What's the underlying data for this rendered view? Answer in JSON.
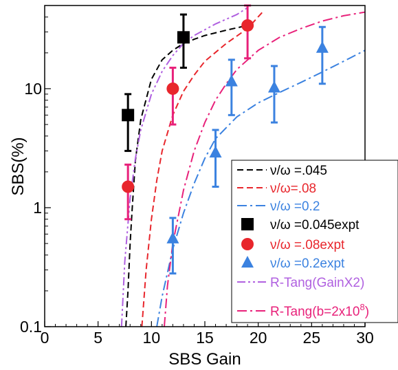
{
  "chart_data": {
    "type": "scatter",
    "xlabel": "SBS Gain",
    "ylabel": "SBS(%)",
    "xlim": [
      0,
      30
    ],
    "ylim": [
      0.1,
      50
    ],
    "y_scale": "log",
    "grid": false,
    "legend_position": "bottom-right",
    "xticks": [
      0,
      5,
      10,
      15,
      20,
      25,
      30
    ],
    "xtick_labels": [
      "0",
      "5",
      "10",
      "15",
      "20",
      "25",
      "30"
    ],
    "yticks": [
      0.1,
      1,
      10
    ],
    "ytick_labels": [
      "0.1",
      "1",
      "10"
    ],
    "series": [
      {
        "name": "ν/ω =.045",
        "kind": "line",
        "dash": "dash",
        "color": "#000000",
        "x": [
          7.6,
          7.8,
          8.0,
          8.2,
          8.5,
          9.0,
          10.0,
          11.0,
          12.0,
          13.0,
          14.0,
          15.0,
          17.0,
          19.0
        ],
        "y": [
          0.1,
          0.2,
          0.5,
          1.0,
          2.5,
          5.5,
          12.0,
          17.5,
          21.0,
          24.0,
          26.0,
          28.0,
          31.0,
          34.0
        ]
      },
      {
        "name": "ν/ω=.08",
        "kind": "line",
        "dash": "dash",
        "color": "#e8262c",
        "x": [
          9.1,
          9.5,
          10.0,
          10.5,
          11.0,
          12.0,
          13.0,
          14.0,
          15.0,
          17.0,
          19.0,
          20.5
        ],
        "y": [
          0.1,
          0.3,
          0.8,
          1.7,
          3.0,
          6.0,
          9.5,
          13.0,
          17.0,
          24.0,
          32.0,
          45.0
        ]
      },
      {
        "name": "ν/ω =0.2",
        "kind": "line",
        "dash": "dashdot",
        "color": "#3b82e0",
        "x": [
          10.5,
          11.0,
          12.0,
          13.0,
          14.0,
          15.0,
          16.0,
          18.0,
          20.0,
          22.0,
          24.0,
          26.0,
          28.0,
          30.0
        ],
        "y": [
          0.1,
          0.18,
          0.45,
          0.9,
          1.6,
          2.6,
          3.8,
          5.8,
          7.6,
          9.3,
          11.3,
          13.8,
          17.0,
          21.0
        ]
      },
      {
        "name": "ν/ω =0.045expt",
        "kind": "points",
        "marker": "square",
        "color": "#000000",
        "x": [
          7.8,
          13.0
        ],
        "y": [
          6.0,
          27.0
        ],
        "err_low": [
          3.0,
          15.0
        ],
        "err_high": [
          9.0,
          42.0
        ]
      },
      {
        "name": "ν/ω =.08expt",
        "kind": "points",
        "marker": "circle",
        "color": "#e8262c",
        "error_color": "#e8217a",
        "x": [
          7.8,
          12.0,
          19.0
        ],
        "y": [
          1.5,
          10.0,
          34.0
        ],
        "err_low": [
          0.8,
          5.0,
          18.0
        ],
        "err_high": [
          2.3,
          15.0,
          50.0
        ]
      },
      {
        "name": "ν/ω =0.2expt",
        "kind": "points",
        "marker": "triangle",
        "color": "#3b82e0",
        "x": [
          12.0,
          16.0,
          17.5,
          21.5,
          26.0
        ],
        "y": [
          0.55,
          2.9,
          11.5,
          10.2,
          22.0
        ],
        "err_low": [
          0.28,
          1.5,
          6.0,
          5.2,
          11.0
        ],
        "err_high": [
          0.82,
          4.5,
          17.5,
          15.5,
          33.0
        ]
      },
      {
        "name": "R-Tang(GainX2)",
        "kind": "line",
        "dash": "dashdotdot",
        "color": "#b060e0",
        "x": [
          7.2,
          7.5,
          8.0,
          8.5,
          9.0,
          10.0,
          11.0,
          12.0,
          13.0,
          14.0,
          16.0,
          18.0,
          19.0
        ],
        "y": [
          0.1,
          0.35,
          1.2,
          2.6,
          4.5,
          9.0,
          14.0,
          19.0,
          24.0,
          28.0,
          35.0,
          42.0,
          48.0
        ]
      },
      {
        "name": "R-Tang(b=2x10⁸)",
        "name_main": "R-Tang(b=2x10",
        "name_sup": "8",
        "name_end": ")",
        "kind": "line",
        "dash": "dashdot",
        "color": "#e8217a",
        "x": [
          11.2,
          11.5,
          12.0,
          13.0,
          14.0,
          15.0,
          16.0,
          17.0,
          18.0,
          20.0,
          22.0,
          24.0,
          26.0,
          28.0,
          30.0
        ],
        "y": [
          0.1,
          0.22,
          0.5,
          1.4,
          3.0,
          5.2,
          8.0,
          11.0,
          14.5,
          21.0,
          27.0,
          32.0,
          37.0,
          41.0,
          44.0
        ]
      }
    ]
  }
}
